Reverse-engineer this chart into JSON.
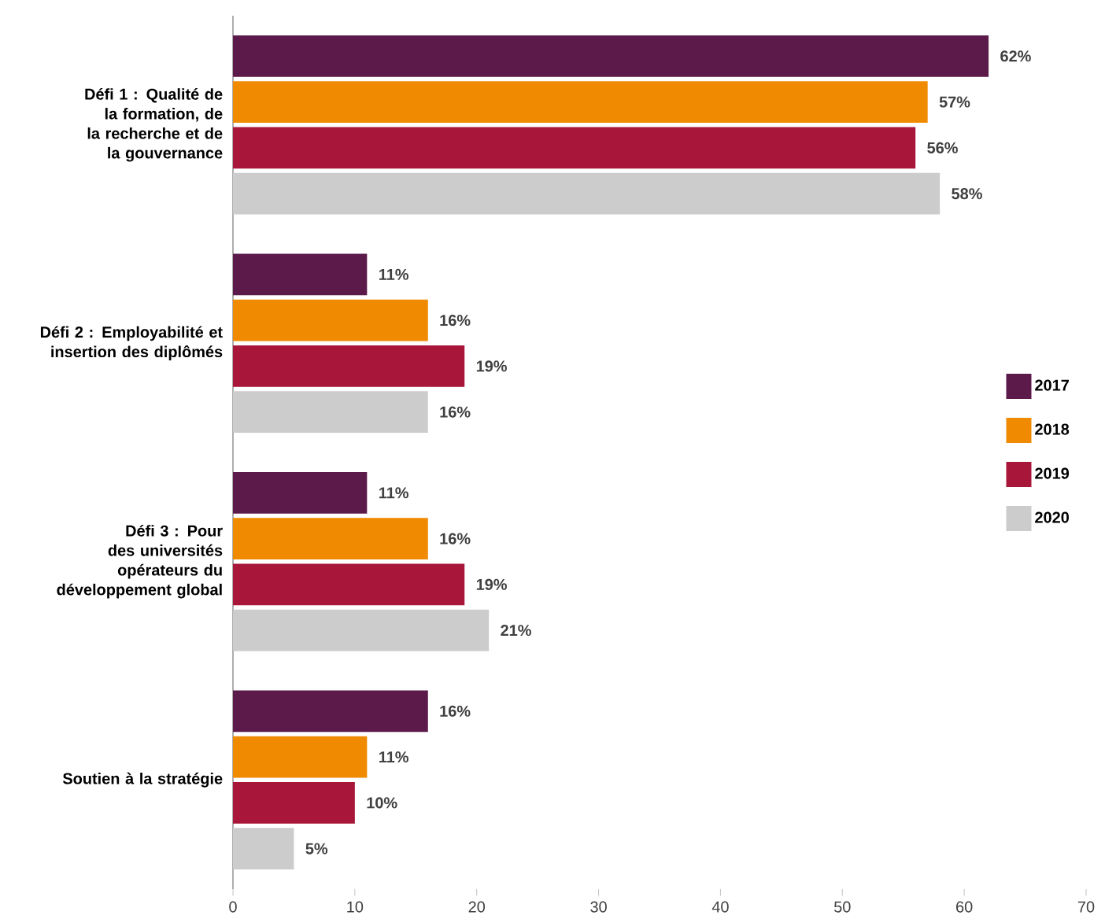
{
  "chart_data": {
    "type": "bar",
    "orientation": "horizontal",
    "categories": [
      "Défi 1 : Qualité de la formation, de la recherche et de la gouvernance",
      "Défi 2 : Employabilité et insertion des diplômés",
      "Défi 3 : Pour des universités opérateurs du développement global",
      "Soutien à la stratégie"
    ],
    "series": [
      {
        "name": "2017",
        "color": "#5c1a4a",
        "values": [
          62,
          11,
          11,
          16
        ],
        "value_labels": [
          "62%",
          "11%",
          "11%",
          "16%"
        ]
      },
      {
        "name": "2018",
        "color": "#f08a00",
        "values": [
          57,
          16,
          16,
          11
        ],
        "value_labels": [
          "57%",
          "16%",
          "16%",
          "11%"
        ]
      },
      {
        "name": "2019",
        "color": "#a8163a",
        "values": [
          56,
          19,
          19,
          10
        ],
        "value_labels": [
          "56%",
          "19%",
          "19%",
          "10%"
        ]
      },
      {
        "name": "2020",
        "color": "#cccccc",
        "values": [
          58,
          16,
          21,
          5
        ],
        "value_labels": [
          "58%",
          "16%",
          "21%",
          "5%"
        ]
      }
    ],
    "xlim": [
      0,
      70
    ],
    "xticks": [
      0,
      10,
      20,
      30,
      40,
      50,
      60,
      70
    ],
    "legend": "right"
  }
}
